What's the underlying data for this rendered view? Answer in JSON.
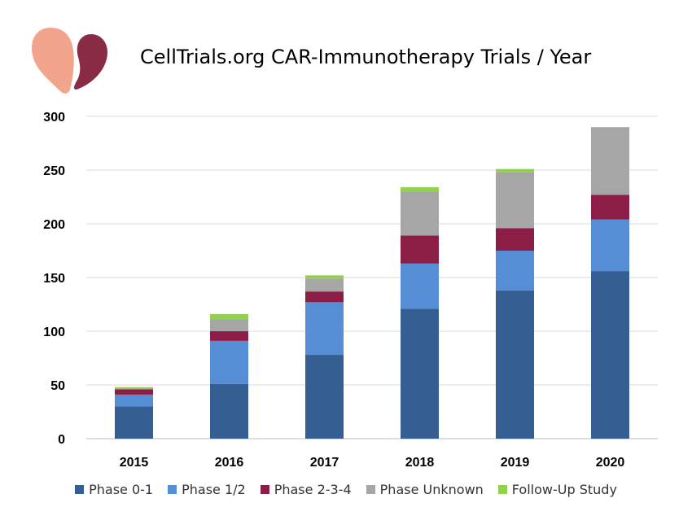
{
  "title": "CellTrials.org CAR-Immunotherapy Trials / Year",
  "logo": {
    "description_icon": "celltrials-logo-icon",
    "colors": [
      "#f2a58c",
      "#8a2b45"
    ]
  },
  "chart_data": {
    "type": "bar",
    "stacked": true,
    "title": "CellTrials.org CAR-Immunotherapy Trials / Year",
    "xlabel": "",
    "ylabel": "",
    "categories": [
      "2015",
      "2016",
      "2017",
      "2018",
      "2019",
      "2020"
    ],
    "ylim": [
      0,
      300
    ],
    "yticks": [
      0,
      50,
      100,
      150,
      200,
      250,
      300
    ],
    "grid": true,
    "legend_position": "bottom",
    "series": [
      {
        "name": "Phase 0-1",
        "color": "#355e93",
        "values": [
          30,
          51,
          78,
          121,
          138,
          156
        ]
      },
      {
        "name": "Phase 1/2",
        "color": "#558ed5",
        "values": [
          11,
          40,
          49,
          42,
          37,
          48
        ]
      },
      {
        "name": "Phase 2-3-4",
        "color": "#8b1d46",
        "values": [
          5,
          9,
          10,
          26,
          21,
          23
        ]
      },
      {
        "name": "Phase Unknown",
        "color": "#a6a6a6",
        "values": [
          1,
          11,
          12,
          41,
          52,
          63
        ]
      },
      {
        "name": "Follow-Up Study",
        "color": "#92d050",
        "values": [
          1,
          5,
          3,
          4,
          3,
          0
        ]
      }
    ]
  }
}
